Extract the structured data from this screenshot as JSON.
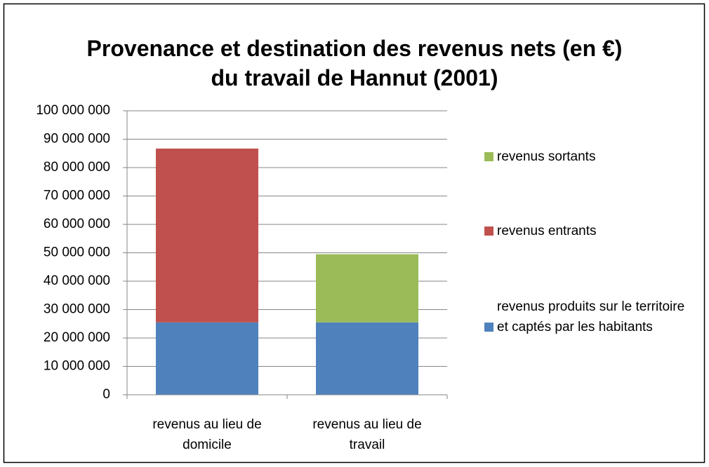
{
  "chart_data": {
    "type": "bar",
    "stacked": true,
    "title": "Provenance et destination des revenus nets (en €) du travail de Hannut (2001)",
    "categories": [
      "revenus au lieu de domicile",
      "revenus au lieu de travail"
    ],
    "series": [
      {
        "name": "revenus produits sur le territoire et captés par les habitants",
        "color": "#4f81bd",
        "values": [
          25500000,
          25500000
        ]
      },
      {
        "name": "revenus entrants",
        "color": "#c0504d",
        "values": [
          61200000,
          null
        ]
      },
      {
        "name": "revenus sortants",
        "color": "#9bbb59",
        "values": [
          null,
          24000000
        ]
      }
    ],
    "ylim": [
      0,
      100000000
    ],
    "yticks": [
      0,
      {
        "value": 10000000,
        "label": "10 000 000"
      },
      {
        "value": 20000000,
        "label": "20 000 000"
      },
      {
        "value": 30000000,
        "label": "30 000 000"
      },
      {
        "value": 40000000,
        "label": "40 000 000"
      },
      {
        "value": 50000000,
        "label": "50 000 000"
      },
      {
        "value": 60000000,
        "label": "60 000 000"
      },
      {
        "value": 70000000,
        "label": "70 000 000"
      },
      {
        "value": 80000000,
        "label": "80 000 000"
      },
      {
        "value": 90000000,
        "label": "90 000 000"
      },
      {
        "value": 100000000,
        "label": "100 000 000"
      }
    ],
    "grid": true,
    "legend": "right"
  }
}
